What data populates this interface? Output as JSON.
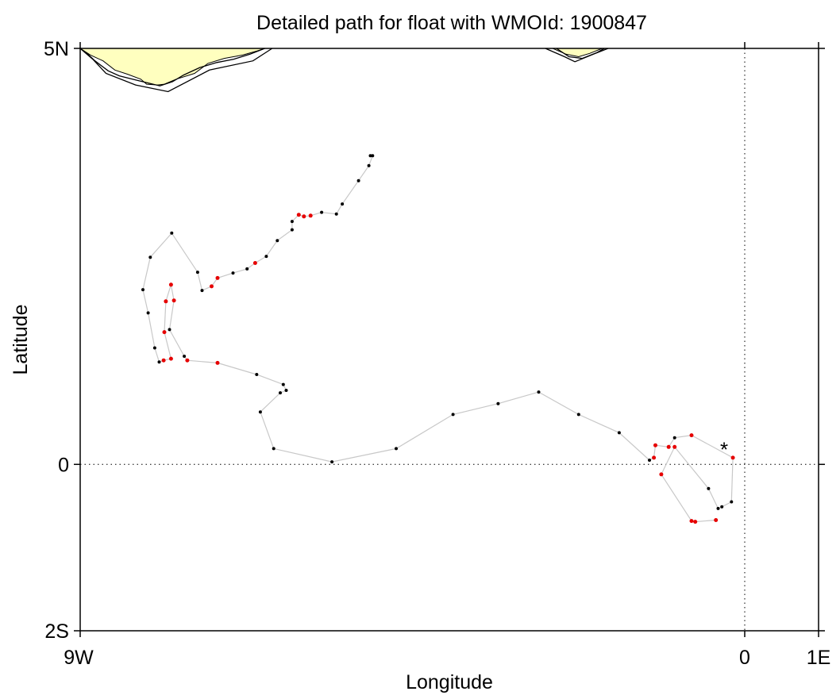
{
  "title": "Detailed path for float with WMOId: 1900847",
  "colors": {
    "land": "#ffffbf",
    "track": "#c8c8c8",
    "profile_black": "#000000",
    "profile_red": "#e60000",
    "marker": "#e60000"
  },
  "chart_data": {
    "type": "scatter",
    "xlabel": "Longitude",
    "ylabel": "Latitude",
    "xlim": [
      -9,
      1
    ],
    "ylim": [
      -2,
      5
    ],
    "x_ticks": [
      {
        "value": -9,
        "label": "9W"
      },
      {
        "value": 0,
        "label": "0"
      },
      {
        "value": 1,
        "label": "1E"
      }
    ],
    "y_ticks": [
      {
        "value": 5,
        "label": "5N"
      },
      {
        "value": 0,
        "label": "0"
      },
      {
        "value": -2,
        "label": "2S"
      }
    ],
    "reference_lines": [
      {
        "axis": "x",
        "value": 0,
        "style": "dotted"
      },
      {
        "axis": "y",
        "value": 0,
        "style": "dotted"
      }
    ],
    "last_position_marker": {
      "lon": -0.28,
      "lat": 0.21,
      "symbol": "*"
    },
    "track": [
      {
        "lon": -5.07,
        "lat": 3.71,
        "c": "k"
      },
      {
        "lon": -5.04,
        "lat": 3.71,
        "c": "k"
      },
      {
        "lon": -5.09,
        "lat": 3.59,
        "c": "k"
      },
      {
        "lon": -5.23,
        "lat": 3.41,
        "c": "k"
      },
      {
        "lon": -5.45,
        "lat": 3.13,
        "c": "k"
      },
      {
        "lon": -5.53,
        "lat": 3.01,
        "c": "k"
      },
      {
        "lon": -5.73,
        "lat": 3.03,
        "c": "k"
      },
      {
        "lon": -5.88,
        "lat": 2.99,
        "c": "r"
      },
      {
        "lon": -5.97,
        "lat": 2.98,
        "c": "r"
      },
      {
        "lon": -6.04,
        "lat": 3.0,
        "c": "r"
      },
      {
        "lon": -6.13,
        "lat": 2.92,
        "c": "k"
      },
      {
        "lon": -6.13,
        "lat": 2.82,
        "c": "k"
      },
      {
        "lon": -6.33,
        "lat": 2.69,
        "c": "k"
      },
      {
        "lon": -6.48,
        "lat": 2.5,
        "c": "k"
      },
      {
        "lon": -6.63,
        "lat": 2.42,
        "c": "r"
      },
      {
        "lon": -6.74,
        "lat": 2.35,
        "c": "k"
      },
      {
        "lon": -6.93,
        "lat": 2.3,
        "c": "k"
      },
      {
        "lon": -7.14,
        "lat": 2.24,
        "c": "r"
      },
      {
        "lon": -7.22,
        "lat": 2.14,
        "c": "r"
      },
      {
        "lon": -7.35,
        "lat": 2.09,
        "c": "k"
      },
      {
        "lon": -7.41,
        "lat": 2.31,
        "c": "k"
      },
      {
        "lon": -7.76,
        "lat": 2.78,
        "c": "k"
      },
      {
        "lon": -8.05,
        "lat": 2.49,
        "c": "k"
      },
      {
        "lon": -8.15,
        "lat": 2.1,
        "c": "k"
      },
      {
        "lon": -8.08,
        "lat": 1.82,
        "c": "k"
      },
      {
        "lon": -7.99,
        "lat": 1.4,
        "c": "k"
      },
      {
        "lon": -7.93,
        "lat": 1.23,
        "c": "k"
      },
      {
        "lon": -7.87,
        "lat": 1.25,
        "c": "r"
      },
      {
        "lon": -7.77,
        "lat": 1.27,
        "c": "r"
      },
      {
        "lon": -7.86,
        "lat": 1.59,
        "c": "r"
      },
      {
        "lon": -7.84,
        "lat": 1.96,
        "c": "r"
      },
      {
        "lon": -7.77,
        "lat": 2.16,
        "c": "r"
      },
      {
        "lon": -7.73,
        "lat": 1.97,
        "c": "r"
      },
      {
        "lon": -7.79,
        "lat": 1.62,
        "c": "k"
      },
      {
        "lon": -7.59,
        "lat": 1.3,
        "c": "k"
      },
      {
        "lon": -7.55,
        "lat": 1.25,
        "c": "r"
      },
      {
        "lon": -7.14,
        "lat": 1.22,
        "c": "r"
      },
      {
        "lon": -6.61,
        "lat": 1.08,
        "c": "k"
      },
      {
        "lon": -6.25,
        "lat": 0.96,
        "c": "k"
      },
      {
        "lon": -6.21,
        "lat": 0.89,
        "c": "k"
      },
      {
        "lon": -6.29,
        "lat": 0.86,
        "c": "k"
      },
      {
        "lon": -6.56,
        "lat": 0.63,
        "c": "k"
      },
      {
        "lon": -6.38,
        "lat": 0.19,
        "c": "k"
      },
      {
        "lon": -5.59,
        "lat": 0.03,
        "c": "k"
      },
      {
        "lon": -4.72,
        "lat": 0.19,
        "c": "k"
      },
      {
        "lon": -3.95,
        "lat": 0.6,
        "c": "k"
      },
      {
        "lon": -3.34,
        "lat": 0.73,
        "c": "k"
      },
      {
        "lon": -2.79,
        "lat": 0.87,
        "c": "k"
      },
      {
        "lon": -2.25,
        "lat": 0.6,
        "c": "k"
      },
      {
        "lon": -1.7,
        "lat": 0.38,
        "c": "k"
      },
      {
        "lon": -1.29,
        "lat": 0.05,
        "c": "k"
      },
      {
        "lon": -1.23,
        "lat": 0.08,
        "c": "r"
      },
      {
        "lon": -1.21,
        "lat": 0.23,
        "c": "r"
      },
      {
        "lon": -1.03,
        "lat": 0.21,
        "c": "r"
      },
      {
        "lon": -0.95,
        "lat": 0.32,
        "c": "k"
      },
      {
        "lon": -0.72,
        "lat": 0.35,
        "c": "r"
      },
      {
        "lon": -0.16,
        "lat": 0.08,
        "c": "r"
      },
      {
        "lon": -0.18,
        "lat": -0.45,
        "c": "k"
      },
      {
        "lon": -0.31,
        "lat": -0.51,
        "c": "k"
      },
      {
        "lon": -0.36,
        "lat": -0.53,
        "c": "k"
      },
      {
        "lon": -0.49,
        "lat": -0.29,
        "c": "k"
      },
      {
        "lon": -0.95,
        "lat": 0.21,
        "c": "r"
      },
      {
        "lon": -1.13,
        "lat": -0.12,
        "c": "r"
      },
      {
        "lon": -0.72,
        "lat": -0.68,
        "c": "r"
      },
      {
        "lon": -0.67,
        "lat": -0.69,
        "c": "r"
      },
      {
        "lon": -0.39,
        "lat": -0.67,
        "c": "r"
      }
    ],
    "land": {
      "labels": [],
      "polygons": [
        [
          [
            -9.0,
            5.0
          ],
          [
            -8.86,
            4.92
          ],
          [
            -8.69,
            4.85
          ],
          [
            -8.53,
            4.74
          ],
          [
            -8.36,
            4.69
          ],
          [
            -8.18,
            4.63
          ],
          [
            -8.1,
            4.57
          ],
          [
            -7.95,
            4.56
          ],
          [
            -7.86,
            4.57
          ],
          [
            -7.7,
            4.63
          ],
          [
            -7.45,
            4.7
          ],
          [
            -7.27,
            4.82
          ],
          [
            -7.05,
            4.88
          ],
          [
            -6.8,
            4.92
          ],
          [
            -6.6,
            4.97
          ],
          [
            -6.5,
            5.0
          ]
        ],
        [
          [
            -2.6,
            5.0
          ],
          [
            -2.42,
            4.93
          ],
          [
            -2.25,
            4.9
          ],
          [
            -2.1,
            4.94
          ],
          [
            -1.93,
            5.0
          ]
        ]
      ],
      "coast_outlines": [
        [
          [
            -9.0,
            5.0
          ],
          [
            -8.92,
            4.95
          ],
          [
            -8.8,
            4.85
          ],
          [
            -8.62,
            4.73
          ],
          [
            -8.47,
            4.67
          ],
          [
            -8.25,
            4.62
          ],
          [
            -7.92,
            4.55
          ],
          [
            -7.75,
            4.6
          ],
          [
            -7.6,
            4.68
          ],
          [
            -7.38,
            4.77
          ],
          [
            -7.15,
            4.83
          ],
          [
            -6.92,
            4.87
          ],
          [
            -6.7,
            4.93
          ],
          [
            -6.5,
            5.0
          ]
        ],
        [
          [
            -9.0,
            5.0
          ],
          [
            -8.83,
            4.87
          ],
          [
            -8.65,
            4.7
          ],
          [
            -8.25,
            4.56
          ],
          [
            -7.81,
            4.48
          ],
          [
            -7.25,
            4.74
          ],
          [
            -6.66,
            4.85
          ],
          [
            -6.4,
            5.0
          ]
        ],
        [
          [
            -2.55,
            5.0
          ],
          [
            -2.38,
            4.9
          ],
          [
            -2.2,
            4.88
          ],
          [
            -2.0,
            4.95
          ],
          [
            -1.9,
            5.0
          ]
        ],
        [
          [
            -2.7,
            5.0
          ],
          [
            -2.44,
            4.9
          ],
          [
            -2.3,
            4.84
          ],
          [
            -2.05,
            4.93
          ],
          [
            -1.85,
            5.0
          ]
        ]
      ]
    }
  }
}
